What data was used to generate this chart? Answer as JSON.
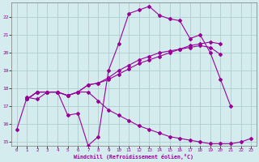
{
  "xlabel": "Windchill (Refroidissement éolien,°C)",
  "bg_color": "#d4ecee",
  "grid_color": "#aecdd0",
  "line_color": "#990099",
  "xlim": [
    -0.5,
    23.5
  ],
  "ylim": [
    14.8,
    22.8
  ],
  "yticks": [
    15,
    16,
    17,
    18,
    19,
    20,
    21,
    22
  ],
  "xticks": [
    0,
    1,
    2,
    3,
    4,
    5,
    6,
    7,
    8,
    9,
    10,
    11,
    12,
    13,
    14,
    15,
    16,
    17,
    18,
    19,
    20,
    21,
    22,
    23
  ],
  "series1_x": [
    0,
    1,
    2,
    3,
    4,
    5,
    6,
    7,
    8,
    9,
    10,
    11,
    12,
    13,
    14,
    15,
    16,
    17,
    18,
    19,
    20,
    21
  ],
  "series1_y": [
    15.7,
    17.5,
    17.4,
    17.8,
    17.8,
    16.5,
    16.6,
    14.8,
    15.3,
    19.0,
    20.5,
    22.2,
    22.4,
    22.6,
    22.1,
    21.9,
    21.8,
    20.8,
    21.0,
    20.0,
    18.5,
    17.0
  ],
  "series2_x": [
    1,
    2,
    3,
    4,
    5,
    6,
    7,
    8,
    9,
    10,
    11,
    12,
    13,
    14,
    15,
    16,
    17,
    18,
    19,
    20
  ],
  "series2_y": [
    17.4,
    17.8,
    17.8,
    17.8,
    17.6,
    17.8,
    18.2,
    18.3,
    18.5,
    18.8,
    19.1,
    19.4,
    19.6,
    19.8,
    20.0,
    20.2,
    20.4,
    20.5,
    20.6,
    20.5
  ],
  "series3_x": [
    1,
    2,
    3,
    4,
    5,
    6,
    7,
    8,
    9,
    10,
    11,
    12,
    13,
    14,
    15,
    16,
    17,
    18,
    19,
    20
  ],
  "series3_y": [
    17.4,
    17.8,
    17.8,
    17.8,
    17.6,
    17.8,
    18.2,
    18.3,
    18.6,
    19.0,
    19.3,
    19.6,
    19.8,
    20.0,
    20.1,
    20.2,
    20.3,
    20.4,
    20.3,
    19.9
  ],
  "series4_x": [
    1,
    2,
    3,
    4,
    5,
    6,
    7,
    8,
    9,
    10,
    11,
    12,
    13,
    14,
    15,
    16,
    17,
    18,
    19,
    20,
    21,
    22,
    23
  ],
  "series4_y": [
    17.4,
    17.8,
    17.8,
    17.8,
    17.6,
    17.8,
    17.8,
    17.3,
    16.8,
    16.5,
    16.2,
    15.9,
    15.7,
    15.5,
    15.3,
    15.2,
    15.1,
    15.0,
    14.9,
    14.9,
    14.9,
    15.0,
    15.2
  ]
}
